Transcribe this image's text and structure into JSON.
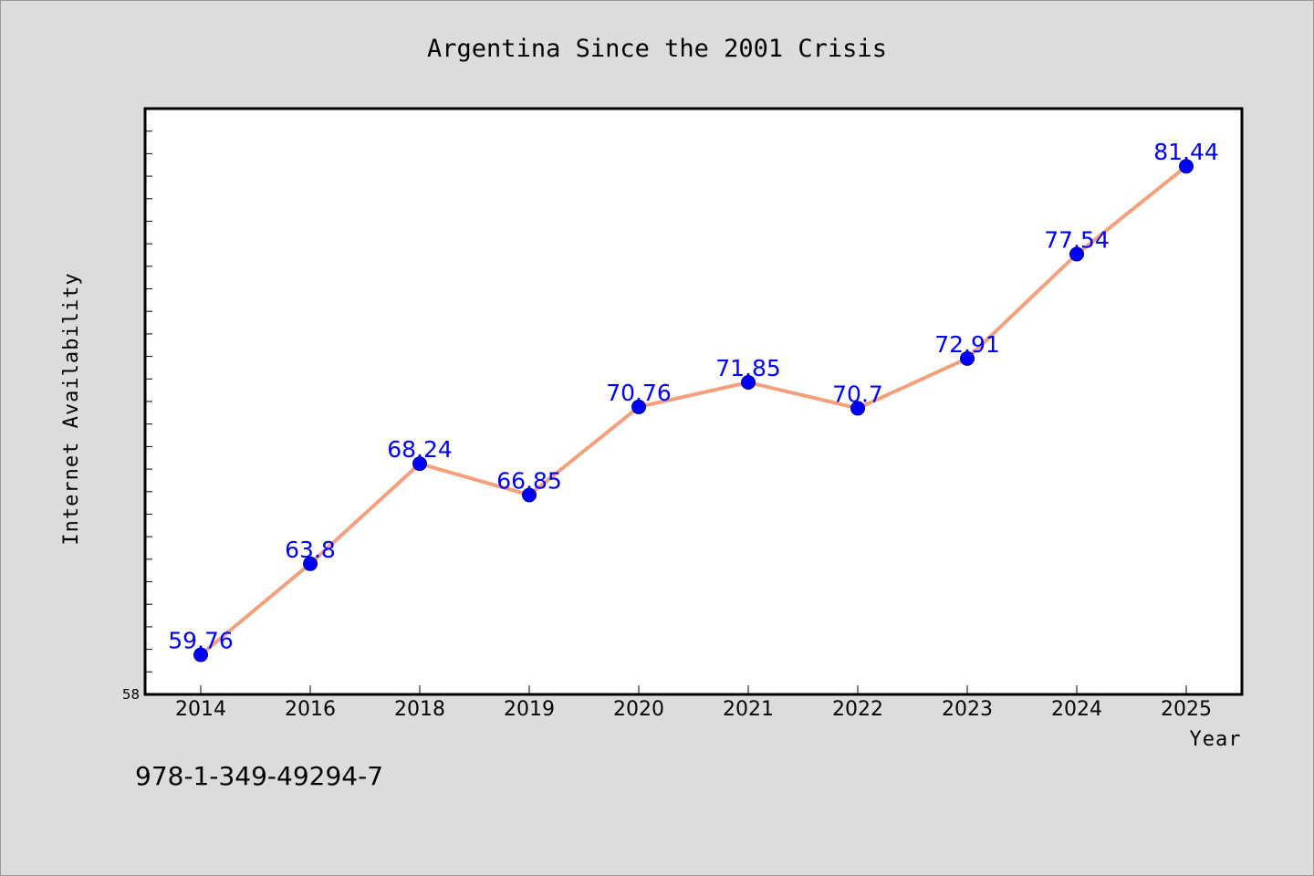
{
  "chart_data": {
    "type": "line",
    "title": "Argentina Since the 2001 Crisis",
    "xlabel": "Year",
    "ylabel": "Internet Availability",
    "categories": [
      "2014",
      "2016",
      "2018",
      "2019",
      "2020",
      "2021",
      "2022",
      "2023",
      "2024",
      "2025"
    ],
    "series": [
      {
        "values": [
          59.76,
          63.8,
          68.24,
          66.85,
          70.76,
          71.85,
          70.7,
          72.91,
          77.54,
          81.44
        ],
        "labels": [
          "59.76",
          "63.8",
          "68.24",
          "66.85",
          "70.76",
          "71.85",
          "70.7",
          "72.91",
          "77.54",
          "81.44"
        ]
      }
    ],
    "ylim": [
      58,
      84
    ],
    "ytick_labels": [
      "58"
    ],
    "grid": false,
    "line_color": "#f4a07c",
    "marker_color": "#0000ff",
    "data_label_color": "#0000ff"
  },
  "annotation": "978-1-349-49294-7"
}
